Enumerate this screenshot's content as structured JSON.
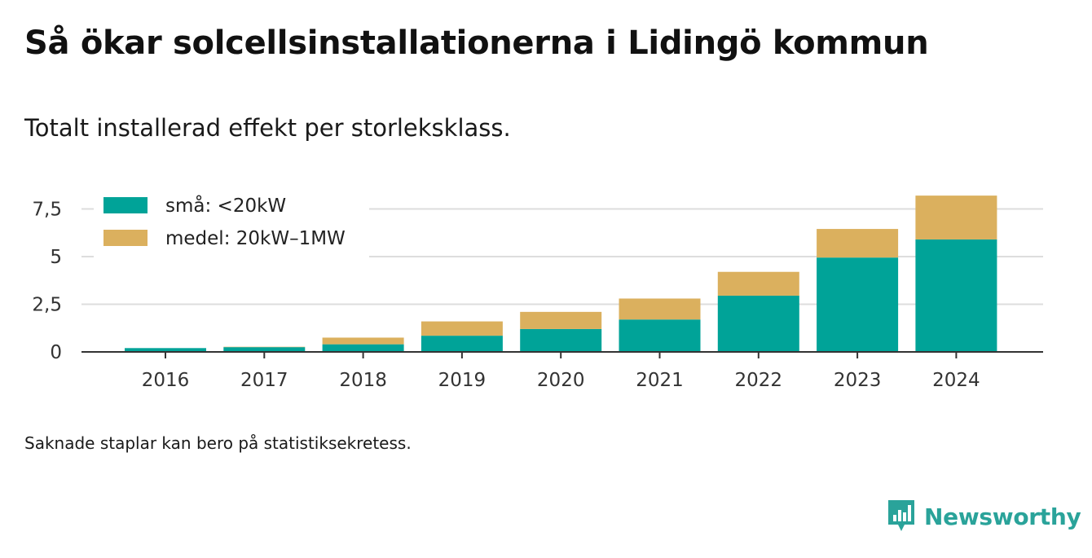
{
  "header": {
    "title": "Så ökar solcellsinstallationerna i Lidingö kommun",
    "subtitle": "Totalt installerad effekt per storleksklass."
  },
  "footer": {
    "note": "Saknade staplar kan bero på statistiksekretess.",
    "brand": "Newsworthy"
  },
  "colors": {
    "small": "#00a398",
    "medium": "#dbb05e",
    "brand": "#2aa39a"
  },
  "chart_data": {
    "type": "bar",
    "stacked": true,
    "categories": [
      "2016",
      "2017",
      "2018",
      "2019",
      "2020",
      "2021",
      "2022",
      "2023",
      "2024"
    ],
    "series": [
      {
        "name": "små: <20kW",
        "color": "#00a398",
        "values": [
          0.2,
          0.25,
          0.4,
          0.85,
          1.2,
          1.7,
          2.95,
          4.95,
          5.9
        ]
      },
      {
        "name": "medel: 20kW–1MW",
        "color": "#dbb05e",
        "values": [
          0.0,
          0.02,
          0.35,
          0.75,
          0.9,
          1.1,
          1.25,
          1.5,
          2.3
        ]
      }
    ],
    "yticks": [
      0,
      2.5,
      5,
      7.5
    ],
    "ytick_labels": [
      "0",
      "2,5",
      "5",
      "7,5"
    ],
    "ylim": [
      0,
      8.2
    ],
    "grid": true,
    "legend": "top-left",
    "title": "",
    "xlabel": "",
    "ylabel": ""
  }
}
